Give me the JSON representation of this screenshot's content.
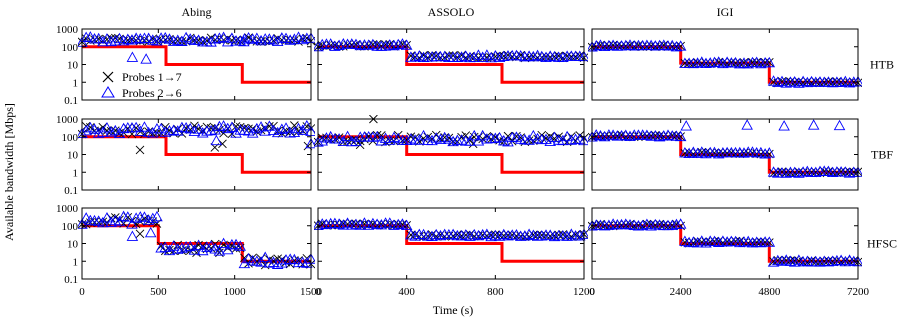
{
  "figure": {
    "ylabel": "Available bandwidth [Mbps]",
    "xlabel": "Time (s)"
  },
  "legend": {
    "probes_a": "Probes 1→7",
    "probes_b": "Probes 2→6"
  },
  "colors": {
    "capacity_line": "#ff0000",
    "probes_a": "#000000",
    "probes_b": "#0000ff"
  },
  "chart_data": {
    "type": "scatter",
    "y_scale": "log",
    "y_ticks": [
      "1000",
      "100",
      "10",
      "1",
      "0.1"
    ],
    "columns": [
      {
        "title": "Abing",
        "xlim": [
          0,
          1500
        ],
        "x_ticks": [
          "0",
          "500",
          "1000",
          "1500"
        ]
      },
      {
        "title": "ASSOLO",
        "xlim": [
          0,
          1200
        ],
        "x_ticks": [
          "0",
          "400",
          "800",
          "1200"
        ]
      },
      {
        "title": "IGI",
        "xlim": [
          0,
          7200
        ],
        "x_ticks": [
          "0",
          "2400",
          "4800",
          "7200"
        ]
      }
    ],
    "rows": [
      {
        "label": "HTB"
      },
      {
        "label": "TBF"
      },
      {
        "label": "HFSC"
      }
    ],
    "series": [
      {
        "name": "Probes 1→7",
        "marker": "x"
      },
      {
        "name": "Probes 2→6",
        "marker": "triangle"
      }
    ],
    "panels": [
      {
        "row": "HTB",
        "col": "Abing",
        "capacity": [
          [
            0,
            100
          ],
          [
            550,
            100
          ],
          [
            550,
            10
          ],
          [
            1050,
            10
          ],
          [
            1050,
            1
          ],
          [
            1500,
            1
          ]
        ],
        "probes_a": {
          "base": 250,
          "spread": 0.12,
          "outliers": []
        },
        "probes_b": {
          "base": 250,
          "spread": 0.15,
          "outliers": [
            [
              330,
              25
            ],
            [
              420,
              20
            ],
            [
              1060,
              190
            ]
          ]
        }
      },
      {
        "row": "HTB",
        "col": "ASSOLO",
        "capacity": [
          [
            0,
            100
          ],
          [
            400,
            100
          ],
          [
            400,
            10
          ],
          [
            830,
            10
          ],
          [
            830,
            1
          ],
          [
            1200,
            1
          ]
        ],
        "probes_a": {
          "levels": [
            [
              0,
              400,
              120
            ],
            [
              400,
              1200,
              28
            ]
          ],
          "spread": 0.08,
          "outliers": []
        },
        "probes_b": {
          "levels": [
            [
              0,
              400,
              120
            ],
            [
              400,
              1200,
              28
            ]
          ],
          "spread": 0.08,
          "outliers": []
        }
      },
      {
        "row": "HTB",
        "col": "IGI",
        "capacity": [
          [
            0,
            100
          ],
          [
            2400,
            100
          ],
          [
            2400,
            12
          ],
          [
            4800,
            12
          ],
          [
            4800,
            1
          ],
          [
            7200,
            1
          ]
        ],
        "probes_a": {
          "levels": [
            [
              0,
              2400,
              110
            ],
            [
              2400,
              4800,
              12
            ],
            [
              4800,
              7200,
              1
            ]
          ],
          "spread": 0.06,
          "outliers": []
        },
        "probes_b": {
          "levels": [
            [
              0,
              2400,
              110
            ],
            [
              2400,
              4800,
              12
            ],
            [
              4800,
              7200,
              1
            ]
          ],
          "spread": 0.06,
          "outliers": []
        }
      },
      {
        "row": "TBF",
        "col": "Abing",
        "capacity": [
          [
            0,
            100
          ],
          [
            550,
            100
          ],
          [
            550,
            10
          ],
          [
            1050,
            10
          ],
          [
            1050,
            1
          ],
          [
            1500,
            1
          ]
        ],
        "probes_a": {
          "base": 250,
          "spread": 0.25,
          "outliers": [
            [
              380,
              18
            ],
            [
              870,
              25
            ],
            [
              920,
              40
            ],
            [
              1480,
              30
            ]
          ]
        },
        "probes_b": {
          "base": 250,
          "spread": 0.22,
          "outliers": [
            [
              880,
              60
            ],
            [
              1500,
              40
            ]
          ]
        }
      },
      {
        "row": "TBF",
        "col": "ASSOLO",
        "capacity": [
          [
            0,
            100
          ],
          [
            400,
            100
          ],
          [
            400,
            10
          ],
          [
            830,
            10
          ],
          [
            830,
            1
          ],
          [
            1200,
            1
          ]
        ],
        "probes_a": {
          "base": 80,
          "spread": 0.2,
          "outliers": [
            [
              250,
              1000
            ],
            [
              190,
              35
            ],
            [
              700,
              40
            ]
          ]
        },
        "probes_b": {
          "base": 75,
          "spread": 0.18,
          "outliers": []
        }
      },
      {
        "row": "TBF",
        "col": "IGI",
        "capacity": [
          [
            0,
            100
          ],
          [
            2400,
            100
          ],
          [
            2400,
            10
          ],
          [
            4800,
            10
          ],
          [
            4800,
            1
          ],
          [
            7200,
            1
          ]
        ],
        "probes_a": {
          "levels": [
            [
              0,
              2400,
              110
            ],
            [
              2400,
              4800,
              12
            ],
            [
              4800,
              7200,
              1
            ]
          ],
          "spread": 0.06,
          "outliers": []
        },
        "probes_b": {
          "levels": [
            [
              0,
              2400,
              110
            ],
            [
              2400,
              4800,
              12
            ],
            [
              4800,
              7200,
              1
            ]
          ],
          "spread": 0.06,
          "outliers": [
            [
              2550,
              400
            ],
            [
              4200,
              450
            ],
            [
              5200,
              400
            ],
            [
              6000,
              450
            ],
            [
              6700,
              420
            ]
          ]
        }
      },
      {
        "row": "HFSC",
        "col": "Abing",
        "capacity": [
          [
            0,
            100
          ],
          [
            500,
            100
          ],
          [
            500,
            10
          ],
          [
            1050,
            10
          ],
          [
            1050,
            1
          ],
          [
            1500,
            1
          ]
        ],
        "probes_a": {
          "levels": [
            [
              0,
              500,
              200
            ],
            [
              500,
              1050,
              6
            ],
            [
              1050,
              1500,
              1
            ]
          ],
          "spread": 0.22,
          "outliers": [
            [
              380,
              35
            ],
            [
              900,
              3
            ],
            [
              750,
              3
            ]
          ]
        },
        "probes_b": {
          "levels": [
            [
              0,
              500,
              200
            ],
            [
              500,
              1050,
              6
            ],
            [
              1050,
              1500,
              1
            ]
          ],
          "spread": 0.22,
          "outliers": [
            [
              330,
              25
            ],
            [
              450,
              40
            ]
          ]
        }
      },
      {
        "row": "HFSC",
        "col": "ASSOLO",
        "capacity": [
          [
            0,
            100
          ],
          [
            400,
            100
          ],
          [
            400,
            10
          ],
          [
            830,
            10
          ],
          [
            830,
            1
          ],
          [
            1200,
            1
          ]
        ],
        "probes_a": {
          "levels": [
            [
              0,
              400,
              120
            ],
            [
              400,
              1200,
              28
            ]
          ],
          "spread": 0.07,
          "outliers": []
        },
        "probes_b": {
          "levels": [
            [
              0,
              400,
              120
            ],
            [
              400,
              1200,
              28
            ]
          ],
          "spread": 0.07,
          "outliers": []
        }
      },
      {
        "row": "HFSC",
        "col": "IGI",
        "capacity": [
          [
            0,
            100
          ],
          [
            2400,
            100
          ],
          [
            2400,
            10
          ],
          [
            4800,
            10
          ],
          [
            4800,
            1
          ],
          [
            7200,
            1
          ]
        ],
        "probes_a": {
          "levels": [
            [
              0,
              2400,
              110
            ],
            [
              2400,
              4800,
              12
            ],
            [
              4800,
              7200,
              1
            ]
          ],
          "spread": 0.06,
          "outliers": []
        },
        "probes_b": {
          "levels": [
            [
              0,
              2400,
              110
            ],
            [
              2400,
              4800,
              12
            ],
            [
              4800,
              7200,
              1
            ]
          ],
          "spread": 0.06,
          "outliers": []
        }
      }
    ]
  }
}
